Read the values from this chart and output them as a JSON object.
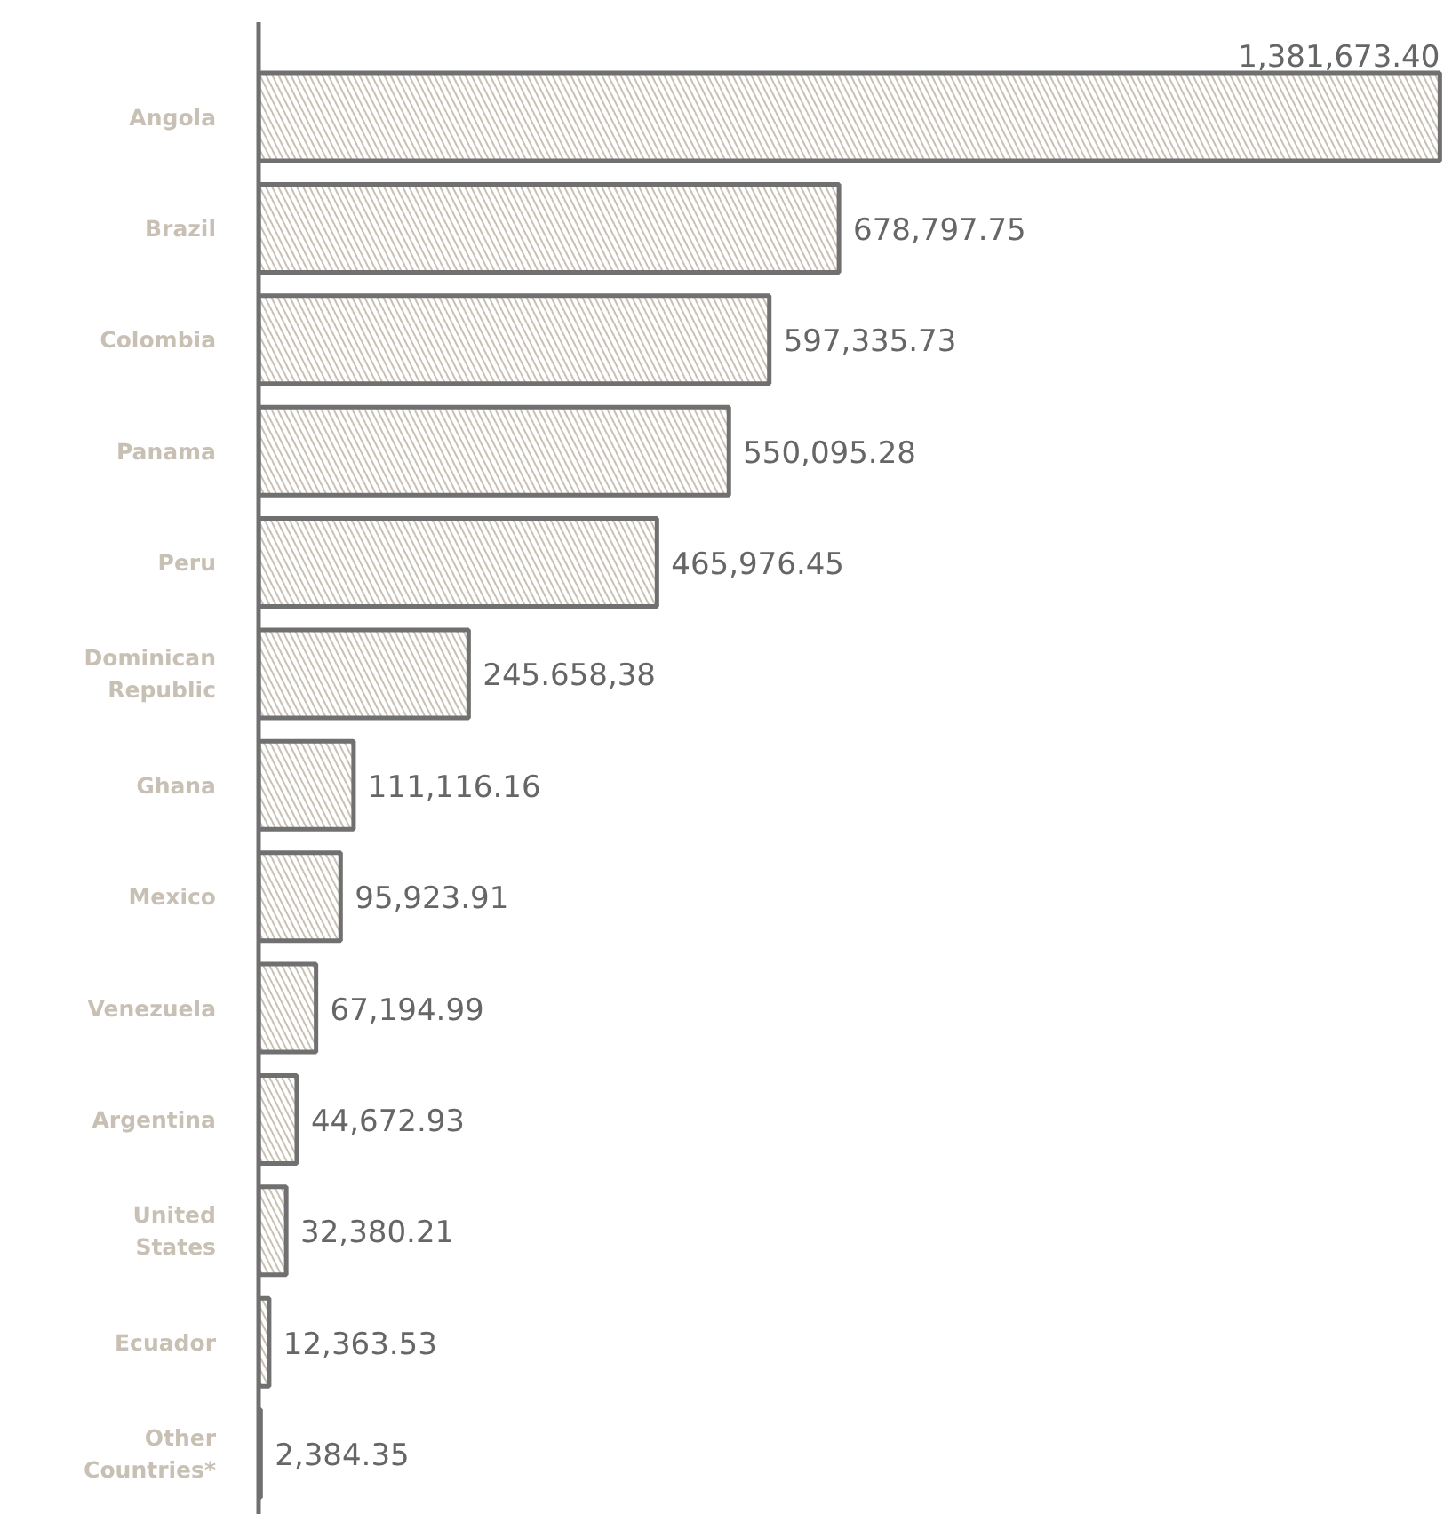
{
  "chart_data": {
    "type": "bar",
    "orientation": "horizontal",
    "categories": [
      "Angola",
      "Brazil",
      "Colombia",
      "Panama",
      "Peru",
      "Dominican Republic",
      "Ghana",
      "Mexico",
      "Venezuela",
      "Argentina",
      "United States",
      "Ecuador",
      "Other Countries*"
    ],
    "values": [
      1381673.4,
      678797.75,
      597335.73,
      550095.28,
      465976.45,
      245658.38,
      111116.16,
      95923.91,
      67194.99,
      44672.93,
      32380.21,
      12363.53,
      2384.35
    ],
    "value_labels": [
      "1,381,673.40",
      "678,797.75",
      "597,335.73",
      "550,095.28",
      "465,976.45",
      "245.658,38",
      "111,116.16",
      "95,923.91",
      "67,194.99",
      "44,672.93",
      "32,380.21",
      "12,363.53",
      "2,384.35"
    ],
    "color": "#707070"
  }
}
